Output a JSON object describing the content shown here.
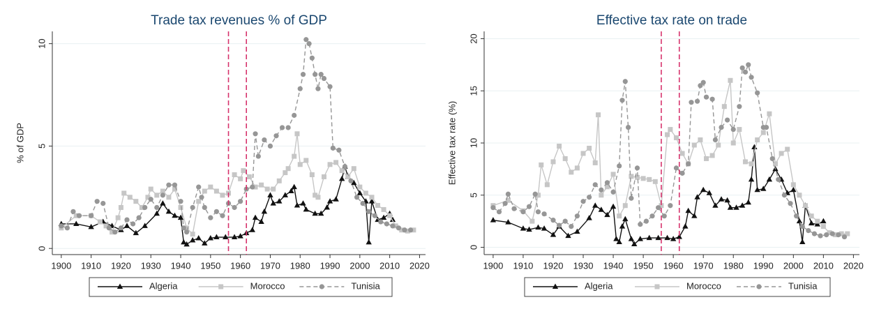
{
  "chart_data": [
    {
      "type": "line",
      "title": "Trade tax revenues % of GDP",
      "y_label": "% of GDP",
      "xlim": [
        1897,
        2022
      ],
      "xticks": [
        1900,
        1910,
        1920,
        1930,
        1940,
        1950,
        1960,
        1970,
        1980,
        1990,
        2000,
        2010,
        2020
      ],
      "ylim": [
        -0.3,
        10.6
      ],
      "yticks": [
        0,
        5,
        10
      ],
      "grid": true,
      "vlines": [
        1956,
        1962
      ],
      "vline_color": "#d6336c",
      "legend": "bottom",
      "series": [
        {
          "name": "Algeria",
          "color": "#111111",
          "marker": "triangle",
          "dash": false,
          "x": [
            1900,
            1905,
            1910,
            1914,
            1917,
            1920,
            1922,
            1925,
            1928,
            1932,
            1934,
            1936,
            1938,
            1940,
            1941,
            1942,
            1944,
            1946,
            1948,
            1950,
            1952,
            1955,
            1958,
            1960,
            1962,
            1964,
            1965,
            1967,
            1968,
            1970,
            1971,
            1973,
            1975,
            1977,
            1978,
            1979,
            1981,
            1982,
            1985,
            1987,
            1989,
            1990,
            1992,
            1994,
            1995,
            1996,
            1998,
            2000,
            2002,
            2003,
            2004,
            2006,
            2008,
            2010,
            2011
          ],
          "values": [
            1.2,
            1.2,
            1.05,
            1.3,
            1.1,
            0.9,
            1.1,
            0.75,
            1.1,
            1.7,
            2.2,
            1.8,
            1.6,
            1.5,
            0.3,
            0.2,
            0.4,
            0.5,
            0.25,
            0.5,
            0.55,
            0.55,
            0.55,
            0.6,
            0.75,
            0.9,
            1.5,
            1.3,
            1.8,
            2.6,
            2.2,
            2.3,
            2.6,
            2.8,
            3.0,
            2.1,
            2.2,
            1.9,
            1.7,
            1.7,
            2.0,
            2.3,
            2.4,
            3.4,
            4.0,
            3.5,
            3.2,
            2.7,
            2.3,
            0.3,
            2.3,
            1.4,
            1.5,
            1.7,
            1.4
          ]
        },
        {
          "name": "Morocco",
          "color": "#c6c6c6",
          "marker": "square",
          "dash": false,
          "x": [
            1900,
            1905,
            1910,
            1913,
            1915,
            1917,
            1919,
            1920,
            1921,
            1923,
            1925,
            1927,
            1929,
            1930,
            1932,
            1934,
            1936,
            1938,
            1940,
            1942,
            1944,
            1946,
            1948,
            1950,
            1952,
            1954,
            1956,
            1958,
            1960,
            1961,
            1963,
            1965,
            1967,
            1969,
            1971,
            1973,
            1975,
            1976,
            1978,
            1979,
            1980,
            1982,
            1984,
            1985,
            1986,
            1988,
            1990,
            1992,
            1994,
            1996,
            1998,
            2000,
            2002,
            2004,
            2006,
            2008,
            2010,
            2012,
            2014,
            2016,
            2018
          ],
          "values": [
            1.0,
            1.6,
            1.6,
            1.3,
            1.1,
            0.8,
            1.5,
            2.0,
            2.7,
            2.5,
            2.3,
            2.0,
            2.5,
            2.9,
            2.6,
            2.8,
            2.5,
            2.9,
            2.0,
            1.0,
            0.7,
            2.3,
            2.8,
            3.0,
            2.8,
            2.6,
            2.7,
            3.6,
            3.4,
            3.8,
            3.5,
            3.0,
            3.1,
            2.9,
            2.9,
            3.3,
            3.7,
            3.9,
            4.5,
            5.6,
            4.1,
            4.3,
            3.6,
            2.6,
            2.5,
            3.5,
            4.1,
            4.2,
            3.8,
            3.5,
            3.9,
            3.0,
            2.7,
            2.5,
            2.1,
            1.9,
            1.6,
            1.1,
            0.9,
            0.85,
            0.9
          ]
        },
        {
          "name": "Tunisia",
          "color": "#969696",
          "marker": "circle",
          "dash": true,
          "x": [
            1900,
            1902,
            1904,
            1906,
            1910,
            1912,
            1914,
            1916,
            1918,
            1920,
            1922,
            1924,
            1926,
            1928,
            1930,
            1932,
            1934,
            1936,
            1938,
            1940,
            1941,
            1942,
            1944,
            1946,
            1947,
            1948,
            1950,
            1952,
            1954,
            1956,
            1958,
            1960,
            1962,
            1964,
            1965,
            1966,
            1968,
            1970,
            1972,
            1974,
            1976,
            1978,
            1980,
            1981,
            1982,
            1983,
            1984,
            1985,
            1986,
            1987,
            1988,
            1990,
            1991,
            1993,
            1995,
            1997,
            1999,
            2001,
            2003,
            2005,
            2007,
            2009,
            2011,
            2013,
            2015,
            2017
          ],
          "values": [
            1.1,
            1.0,
            1.8,
            1.6,
            1.6,
            2.3,
            2.2,
            1.0,
            0.8,
            1.0,
            1.4,
            1.2,
            1.5,
            2.0,
            2.4,
            2.0,
            2.6,
            3.1,
            3.1,
            2.3,
            1.0,
            0.8,
            2.0,
            3.0,
            2.5,
            2.0,
            1.5,
            1.8,
            1.6,
            2.2,
            2.0,
            2.3,
            2.9,
            3.0,
            5.6,
            4.5,
            5.3,
            5.0,
            5.5,
            5.9,
            5.9,
            6.5,
            7.8,
            8.5,
            10.2,
            10.0,
            9.3,
            8.5,
            7.8,
            8.5,
            8.3,
            7.9,
            4.9,
            4.8,
            4.0,
            3.3,
            2.5,
            2.2,
            1.8,
            1.6,
            1.3,
            1.2,
            1.1,
            1.0,
            0.9,
            0.9
          ]
        }
      ]
    },
    {
      "type": "line",
      "title": "Effective tax rate on trade",
      "y_label": "Effective tax rate (%)",
      "xlim": [
        1897,
        2022
      ],
      "xticks": [
        1900,
        1910,
        1920,
        1930,
        1940,
        1950,
        1960,
        1970,
        1980,
        1990,
        2000,
        2010,
        2020
      ],
      "ylim": [
        -0.7,
        20.7
      ],
      "yticks": [
        0,
        5,
        10,
        15,
        20
      ],
      "grid": true,
      "vlines": [
        1956,
        1962
      ],
      "vline_color": "#d6336c",
      "legend": "bottom",
      "series": [
        {
          "name": "Algeria",
          "color": "#111111",
          "marker": "triangle",
          "dash": false,
          "x": [
            1900,
            1905,
            1910,
            1912,
            1915,
            1917,
            1920,
            1922,
            1925,
            1928,
            1932,
            1934,
            1936,
            1938,
            1940,
            1941,
            1942,
            1943,
            1944,
            1946,
            1947,
            1949,
            1952,
            1955,
            1958,
            1960,
            1962,
            1964,
            1965,
            1967,
            1968,
            1970,
            1972,
            1974,
            1976,
            1978,
            1979,
            1981,
            1983,
            1985,
            1986,
            1987,
            1988,
            1990,
            1992,
            1994,
            1996,
            1998,
            2000,
            2002,
            2003,
            2004,
            2006,
            2008,
            2010
          ],
          "values": [
            2.6,
            2.4,
            1.8,
            1.7,
            1.9,
            1.8,
            1.2,
            2.0,
            1.1,
            1.5,
            2.8,
            4.0,
            3.6,
            3.1,
            3.9,
            0.8,
            0.5,
            2.0,
            2.7,
            0.8,
            0.3,
            0.8,
            0.9,
            0.9,
            0.9,
            0.8,
            1.0,
            2.0,
            3.5,
            3.0,
            4.8,
            5.5,
            5.2,
            4.0,
            4.6,
            4.5,
            3.8,
            3.8,
            4.0,
            4.3,
            6.5,
            9.6,
            5.5,
            5.6,
            6.5,
            7.5,
            6.5,
            5.2,
            5.5,
            2.5,
            0.5,
            4.0,
            2.3,
            2.2,
            2.5
          ]
        },
        {
          "name": "Morocco",
          "color": "#c6c6c6",
          "marker": "square",
          "dash": false,
          "x": [
            1900,
            1905,
            1910,
            1913,
            1915,
            1916,
            1918,
            1920,
            1922,
            1924,
            1926,
            1928,
            1930,
            1932,
            1934,
            1935,
            1936,
            1938,
            1940,
            1942,
            1944,
            1946,
            1948,
            1950,
            1952,
            1954,
            1956,
            1958,
            1959,
            1961,
            1963,
            1965,
            1967,
            1969,
            1971,
            1973,
            1975,
            1977,
            1979,
            1980,
            1982,
            1984,
            1986,
            1988,
            1990,
            1992,
            1994,
            1996,
            1998,
            2000,
            2002,
            2004,
            2006,
            2008,
            2010,
            2012,
            2014,
            2016,
            2018
          ],
          "values": [
            4.0,
            4.5,
            3.5,
            2.5,
            5.0,
            7.9,
            6.0,
            8.2,
            9.7,
            8.5,
            7.2,
            7.6,
            9.0,
            9.5,
            8.1,
            12.7,
            5.0,
            5.8,
            7.0,
            3.0,
            4.0,
            6.8,
            6.7,
            6.6,
            6.5,
            6.3,
            4.0,
            10.8,
            11.3,
            10.5,
            9.0,
            8.0,
            9.8,
            10.3,
            8.5,
            8.8,
            9.8,
            13.5,
            16.0,
            10.0,
            11.3,
            8.2,
            8.0,
            10.3,
            11.0,
            12.8,
            8.0,
            9.0,
            9.4,
            6.0,
            5.0,
            4.0,
            3.0,
            2.5,
            2.0,
            1.4,
            1.2,
            1.3,
            1.3
          ]
        },
        {
          "name": "Tunisia",
          "color": "#969696",
          "marker": "circle",
          "dash": true,
          "x": [
            1900,
            1902,
            1904,
            1905,
            1907,
            1910,
            1912,
            1914,
            1915,
            1917,
            1920,
            1922,
            1924,
            1926,
            1928,
            1930,
            1932,
            1934,
            1936,
            1938,
            1940,
            1942,
            1943,
            1944,
            1945,
            1946,
            1948,
            1949,
            1951,
            1953,
            1955,
            1957,
            1959,
            1961,
            1963,
            1965,
            1966,
            1968,
            1969,
            1970,
            1971,
            1973,
            1974,
            1976,
            1978,
            1980,
            1982,
            1983,
            1984,
            1985,
            1986,
            1988,
            1990,
            1991,
            1993,
            1995,
            1997,
            1999,
            2001,
            2003,
            2005,
            2007,
            2009,
            2011,
            2013,
            2015,
            2017
          ],
          "values": [
            3.8,
            3.4,
            4.2,
            5.1,
            3.7,
            3.4,
            3.9,
            5.1,
            3.4,
            3.2,
            2.6,
            2.1,
            2.5,
            2.0,
            3.0,
            4.4,
            4.8,
            6.0,
            5.5,
            6.2,
            5.3,
            7.8,
            14.1,
            15.9,
            11.5,
            4.7,
            7.6,
            2.2,
            2.5,
            3.0,
            3.8,
            3.0,
            4.0,
            7.6,
            7.1,
            8.0,
            13.9,
            14.0,
            15.5,
            15.8,
            14.4,
            14.2,
            10.3,
            11.5,
            12.2,
            11.3,
            13.5,
            17.2,
            16.8,
            17.5,
            16.3,
            14.8,
            11.5,
            11.5,
            8.5,
            6.5,
            5.0,
            4.2,
            3.0,
            2.0,
            1.6,
            1.3,
            1.1,
            1.2,
            1.3,
            1.2,
            1.0
          ]
        }
      ]
    }
  ]
}
